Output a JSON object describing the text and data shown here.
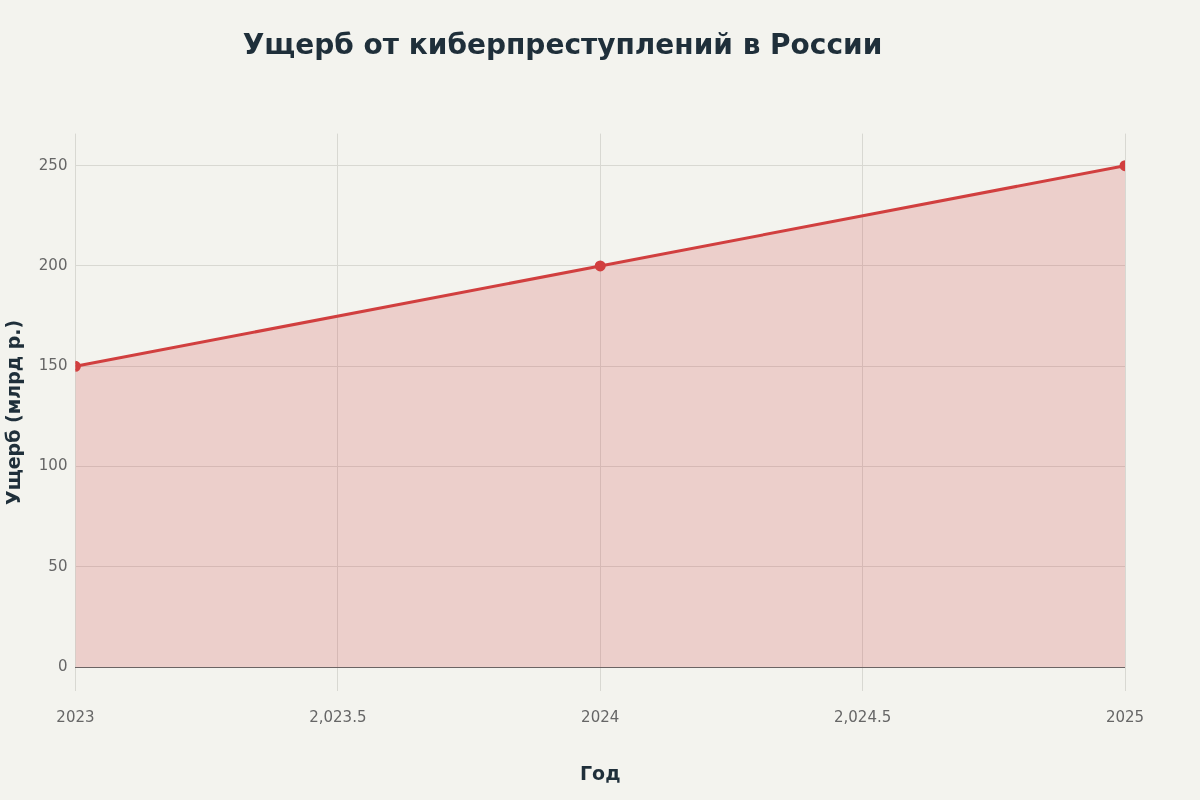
{
  "chart_data": {
    "type": "area",
    "title": "Ущерб от киберпреступлений в России",
    "xlabel": "Год",
    "ylabel": "Ущерб (млрд р.)",
    "x": [
      2023,
      2024,
      2025
    ],
    "series": [
      {
        "color": "#d13f3f",
        "values": [
          150,
          200,
          250
        ]
      }
    ],
    "xlim": [
      2023,
      2025
    ],
    "xticks": [
      2023,
      {
        "value": 2023.5,
        "label": "2,023.5"
      },
      2024,
      {
        "value": 2024.5,
        "label": "2,024.5"
      },
      2025
    ],
    "ylim": [
      -12,
      266
    ],
    "yticks": [
      0,
      50,
      100,
      150,
      200,
      250
    ],
    "grid": true,
    "legend": false,
    "marker": "circle",
    "line_style": "solid"
  }
}
